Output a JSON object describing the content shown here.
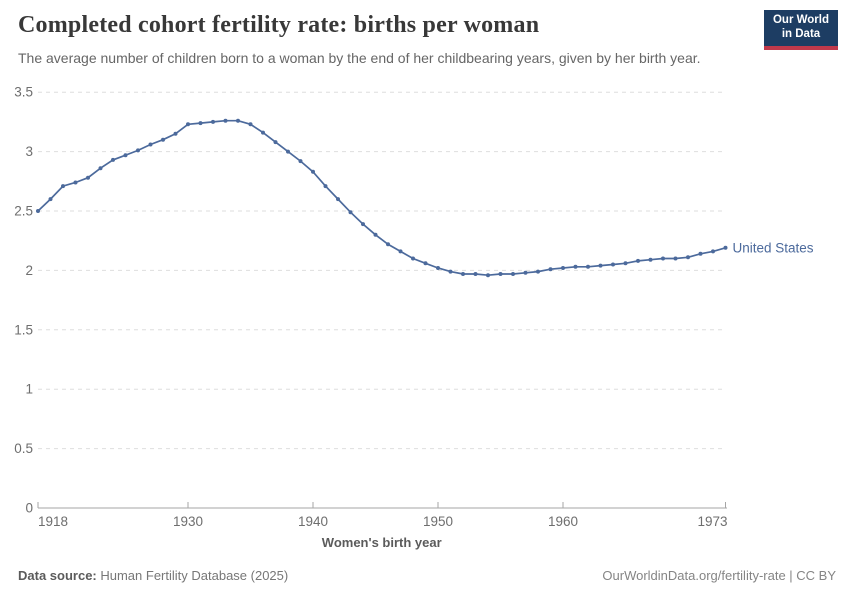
{
  "header": {
    "title": "Completed cohort fertility rate: births per woman",
    "subtitle": "The average number of children born to a woman by the end of her childbearing years, given by her birth year.",
    "logo": {
      "line1": "Our World",
      "line2": "in Data",
      "bg_color": "#1d3d63",
      "accent_color": "#c0394b"
    }
  },
  "chart_data": {
    "type": "line",
    "title": "Completed cohort fertility rate: births per woman",
    "xlabel": "Women's birth year",
    "ylabel": "",
    "xlim": [
      1918,
      1973
    ],
    "ylim": [
      0,
      3.5
    ],
    "xticks": [
      1918,
      1930,
      1940,
      1950,
      1960,
      1973
    ],
    "yticks": [
      0,
      0.5,
      1,
      1.5,
      2,
      2.5,
      3,
      3.5
    ],
    "grid": "horizontal-dashed",
    "legend_position": "end-of-line-label",
    "line_color": "#4C6A9C",
    "grid_color": "#dedede",
    "axis_color": "#a5a5a5",
    "tick_label_color": "#6e6e6e",
    "series": [
      {
        "name": "United States",
        "color": "#4C6A9C",
        "x": [
          1918,
          1919,
          1920,
          1921,
          1922,
          1923,
          1924,
          1925,
          1926,
          1927,
          1928,
          1929,
          1930,
          1931,
          1932,
          1933,
          1934,
          1935,
          1936,
          1937,
          1938,
          1939,
          1940,
          1941,
          1942,
          1943,
          1944,
          1945,
          1946,
          1947,
          1948,
          1949,
          1950,
          1951,
          1952,
          1953,
          1954,
          1955,
          1956,
          1957,
          1958,
          1959,
          1960,
          1961,
          1962,
          1963,
          1964,
          1965,
          1966,
          1967,
          1968,
          1969,
          1970,
          1971,
          1972,
          1973
        ],
        "values": [
          2.5,
          2.6,
          2.71,
          2.74,
          2.78,
          2.86,
          2.93,
          2.97,
          3.01,
          3.06,
          3.1,
          3.15,
          3.23,
          3.24,
          3.25,
          3.26,
          3.26,
          3.23,
          3.16,
          3.08,
          3.0,
          2.92,
          2.83,
          2.71,
          2.6,
          2.49,
          2.39,
          2.3,
          2.22,
          2.16,
          2.1,
          2.06,
          2.02,
          1.99,
          1.97,
          1.97,
          1.96,
          1.97,
          1.97,
          1.98,
          1.99,
          2.01,
          2.02,
          2.03,
          2.03,
          2.04,
          2.05,
          2.06,
          2.08,
          2.09,
          2.1,
          2.1,
          2.11,
          2.14,
          2.16,
          2.19
        ]
      }
    ]
  },
  "footer": {
    "source_label": "Data source:",
    "source_value": " Human Fertility Database (2025)",
    "link": "OurWorldinData.org/fertility-rate | CC BY"
  }
}
